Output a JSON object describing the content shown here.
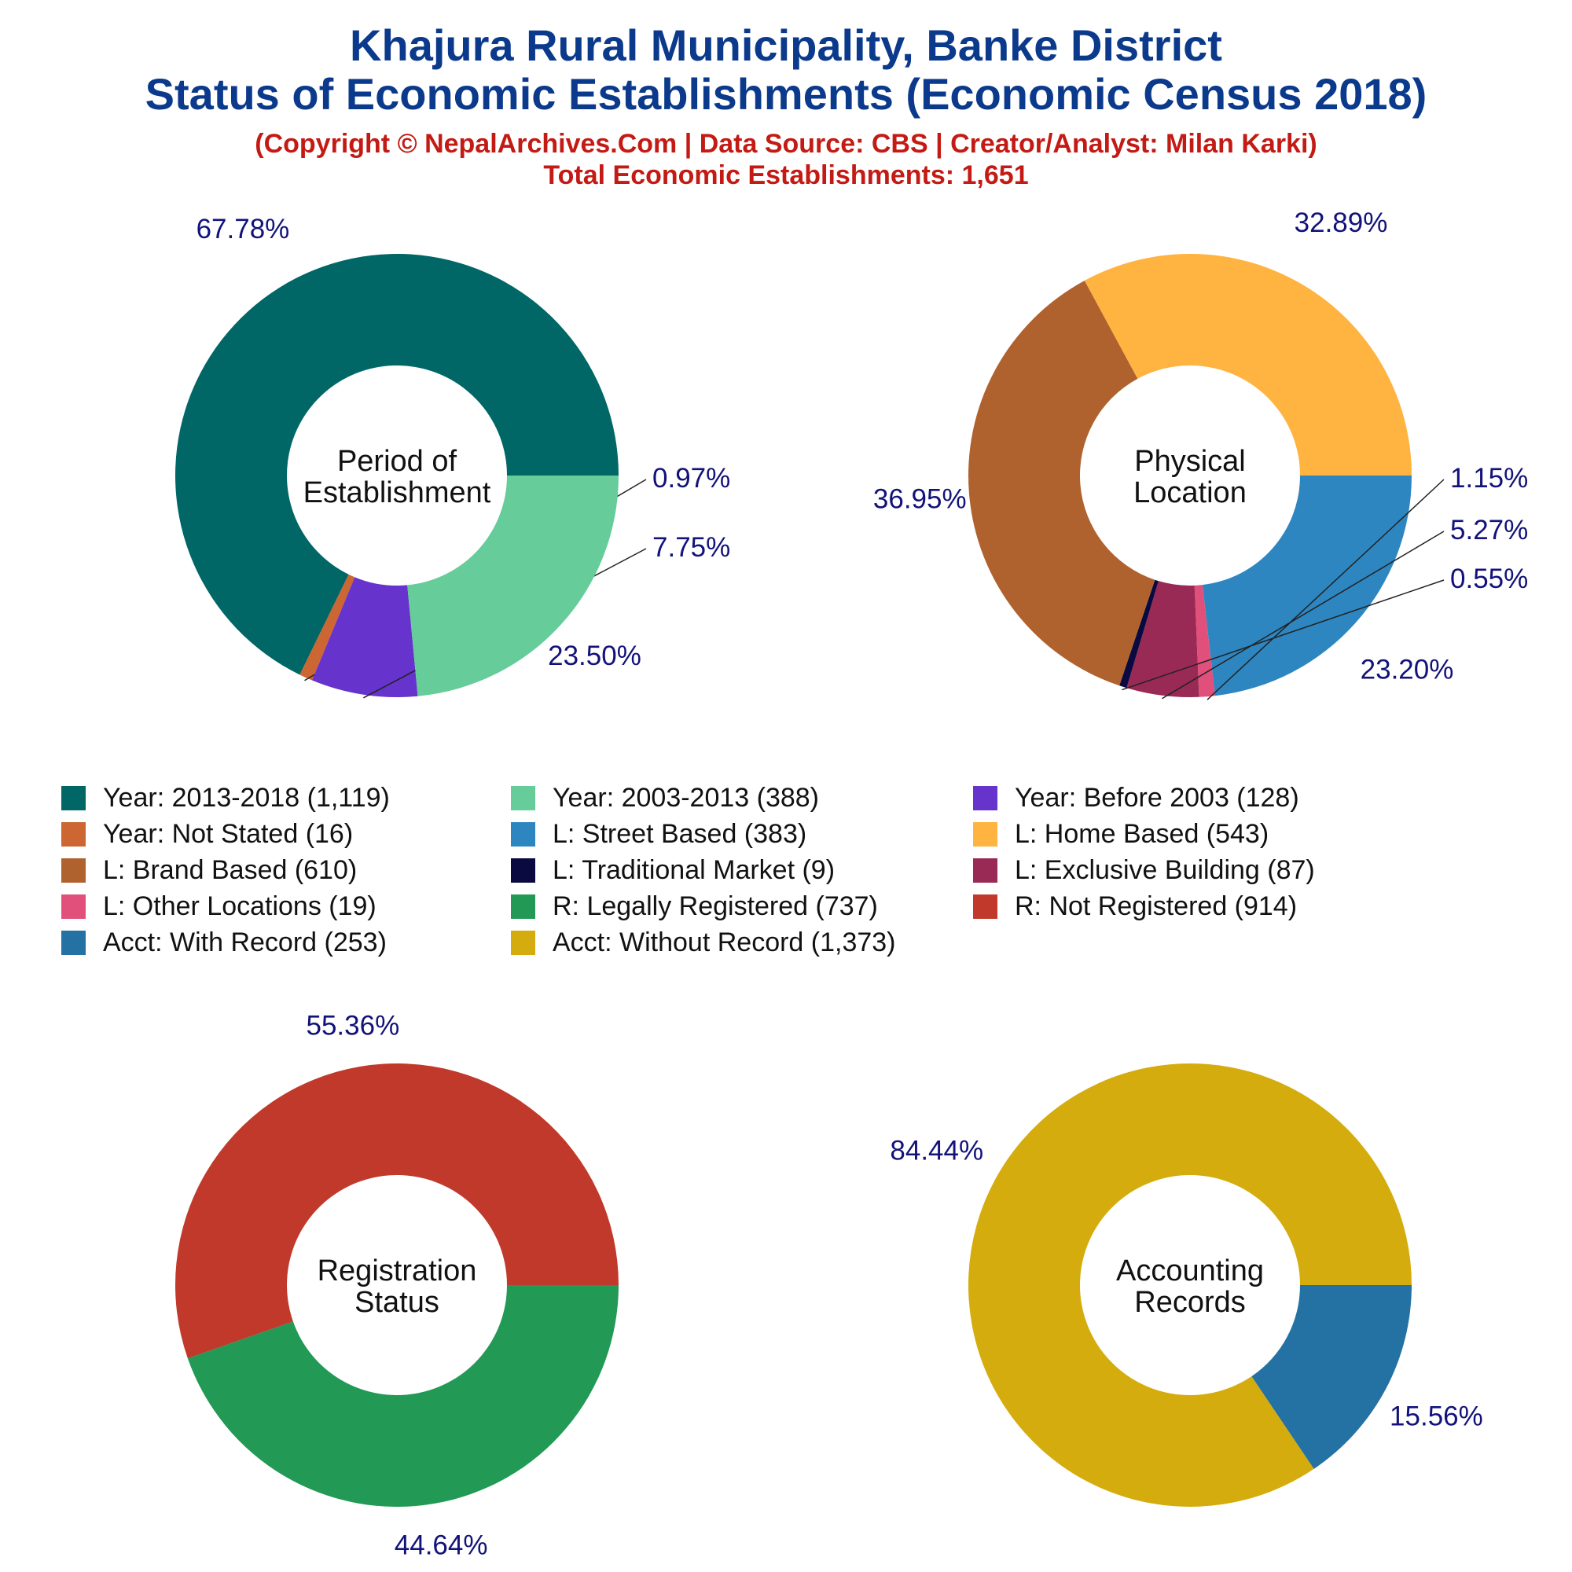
{
  "header": {
    "title_line1": "Khajura Rural Municipality, Banke District",
    "title_line2": "Status of Economic Establishments (Economic Census 2018)",
    "subtitle_line1": "(Copyright © NepalArchives.Com | Data Source: CBS | Creator/Analyst: Milan Karki)",
    "subtitle_line2": "Total Economic Establishments: 1,651"
  },
  "chart_data": [
    {
      "type": "pie",
      "variant": "donut",
      "center_label": [
        "Period of",
        "Establishment"
      ],
      "slices": [
        {
          "label": "Year: 2013-2018",
          "value": 1119,
          "percent": "67.78%",
          "color": "#006666"
        },
        {
          "label": "Year: Not Stated",
          "value": 16,
          "percent": "0.97%",
          "color": "#cc6633"
        },
        {
          "label": "Year: Before 2003",
          "value": 128,
          "percent": "7.75%",
          "color": "#6633cc"
        },
        {
          "label": "Year: 2003-2013",
          "value": 388,
          "percent": "23.50%",
          "color": "#66cc99"
        }
      ]
    },
    {
      "type": "pie",
      "variant": "donut",
      "center_label": [
        "Physical",
        "Location"
      ],
      "slices": [
        {
          "label": "L: Street Based",
          "value": 383,
          "percent": "23.20%",
          "color": "#2e86c1"
        },
        {
          "label": "L: Other Locations",
          "value": 19,
          "percent": "1.15%",
          "color": "#e0507a"
        },
        {
          "label": "L: Exclusive Building",
          "value": 87,
          "percent": "5.27%",
          "color": "#992955"
        },
        {
          "label": "L: Traditional Market",
          "value": 9,
          "percent": "0.55%",
          "color": "#0a0a40"
        },
        {
          "label": "L: Brand Based",
          "value": 610,
          "percent": "36.95%",
          "color": "#b0622e"
        },
        {
          "label": "L: Home Based",
          "value": 543,
          "percent": "32.89%",
          "color": "#ffb340"
        }
      ]
    },
    {
      "type": "pie",
      "variant": "donut",
      "center_label": [
        "Registration",
        "Status"
      ],
      "slices": [
        {
          "label": "R: Legally Registered",
          "value": 737,
          "percent": "44.64%",
          "color": "#229954"
        },
        {
          "label": "R: Not Registered",
          "value": 914,
          "percent": "55.36%",
          "color": "#c0392b"
        }
      ]
    },
    {
      "type": "pie",
      "variant": "donut",
      "center_label": [
        "Accounting",
        "Records"
      ],
      "slices": [
        {
          "label": "Acct: With Record",
          "value": 253,
          "percent": "15.56%",
          "color": "#2471a3"
        },
        {
          "label": "Acct: Without Record",
          "value": 1373,
          "percent": "84.44%",
          "color": "#d4ac0d"
        }
      ]
    }
  ],
  "legend": [
    {
      "text": "Year: 2013-2018 (1,119)",
      "color": "#006666"
    },
    {
      "text": "Year: 2003-2013 (388)",
      "color": "#66cc99"
    },
    {
      "text": "Year: Before 2003 (128)",
      "color": "#6633cc"
    },
    {
      "text": "Year: Not Stated (16)",
      "color": "#cc6633"
    },
    {
      "text": "L: Street Based (383)",
      "color": "#2e86c1"
    },
    {
      "text": "L: Home Based (543)",
      "color": "#ffb340"
    },
    {
      "text": "L: Brand Based (610)",
      "color": "#b0622e"
    },
    {
      "text": "L: Traditional Market (9)",
      "color": "#0a0a40"
    },
    {
      "text": "L: Exclusive Building (87)",
      "color": "#992955"
    },
    {
      "text": "L: Other Locations (19)",
      "color": "#e0507a"
    },
    {
      "text": "R: Legally Registered (737)",
      "color": "#229954"
    },
    {
      "text": "R: Not Registered (914)",
      "color": "#c0392b"
    },
    {
      "text": "Acct: With Record (253)",
      "color": "#2471a3"
    },
    {
      "text": "Acct: Without Record (1,373)",
      "color": "#d4ac0d"
    }
  ]
}
